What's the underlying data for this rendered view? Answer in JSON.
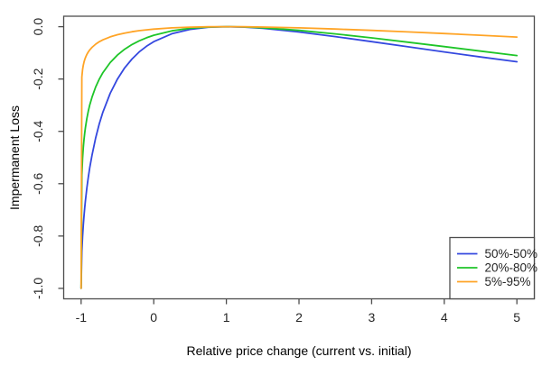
{
  "figure": {
    "background": "#ffffff"
  },
  "chart_data": {
    "type": "line",
    "title": "",
    "xlabel": "Relative price change (current vs. initial)",
    "ylabel": "Impermanent Loss",
    "xlim": [
      -1,
      5
    ],
    "ylim": [
      -1,
      0
    ],
    "x_ticks": [
      -1,
      0,
      1,
      2,
      3,
      4,
      5
    ],
    "x_tick_labels": [
      "-1",
      "0",
      "1",
      "2",
      "3",
      "4",
      "5"
    ],
    "y_ticks": [
      0,
      -0.2,
      -0.4,
      -0.6,
      -0.8,
      -1
    ],
    "y_tick_labels": [
      "0.0",
      "-0.2",
      "-0.4",
      "-0.6",
      "-0.8",
      "-1.0"
    ],
    "grid": false,
    "axis_color": "#4d4d4d",
    "text_color": "#262626",
    "legend": {
      "position": "bottom-right",
      "border": true,
      "background": "#ffffff"
    },
    "series": [
      {
        "name": "50%-50%",
        "color": "#3448DF",
        "points": [
          [
            -1,
            -1
          ],
          [
            -0.99,
            -0.8593
          ],
          [
            -0.98,
            -0.802
          ],
          [
            -0.97,
            -0.7587
          ],
          [
            -0.96,
            -0.7227
          ],
          [
            -0.95,
            -0.6915
          ],
          [
            -0.94,
            -0.6637
          ],
          [
            -0.92,
            -0.6154
          ],
          [
            -0.9,
            -0.5741
          ],
          [
            -0.88,
            -0.5378
          ],
          [
            -0.85,
            -0.4905
          ],
          [
            -0.8,
            -0.425
          ],
          [
            -0.75,
            -0.3715
          ],
          [
            -0.7,
            -0.3264
          ],
          [
            -0.6,
            -0.2546
          ],
          [
            -0.5,
            -0.2
          ],
          [
            -0.4,
            -0.1574
          ],
          [
            -0.3,
            -0.1235
          ],
          [
            -0.2,
            -0.0965
          ],
          [
            -0.1,
            -0.0747
          ],
          [
            0,
            -0.0572
          ],
          [
            0.25,
            -0.027
          ],
          [
            0.5,
            -0.0103
          ],
          [
            0.75,
            -0.0022
          ],
          [
            1,
            0
          ],
          [
            1.25,
            -0.0017
          ],
          [
            1.5,
            -0.0062
          ],
          [
            2,
            -0.0202
          ],
          [
            2.5,
            -0.0379
          ],
          [
            3,
            -0.0572
          ],
          [
            3.5,
            -0.0769
          ],
          [
            4,
            -0.0965
          ],
          [
            4.5,
            -0.1156
          ],
          [
            5,
            -0.134
          ]
        ]
      },
      {
        "name": "20%-80%",
        "color": "#1EC528",
        "points": [
          [
            -1,
            -1
          ],
          [
            -0.99,
            -0.5673
          ],
          [
            -0.98,
            -0.5036
          ],
          [
            -0.97,
            -0.4624
          ],
          [
            -0.96,
            -0.4312
          ],
          [
            -0.95,
            -0.406
          ],
          [
            -0.94,
            -0.3847
          ],
          [
            -0.92,
            -0.3499
          ],
          [
            -0.9,
            -0.3219
          ],
          [
            -0.88,
            -0.2984
          ],
          [
            -0.85,
            -0.2691
          ],
          [
            -0.8,
            -0.2305
          ],
          [
            -0.75,
            -0.2003
          ],
          [
            -0.7,
            -0.1756
          ],
          [
            -0.6,
            -0.1372
          ],
          [
            -0.5,
            -0.1084
          ],
          [
            -0.4,
            -0.086
          ],
          [
            -0.3,
            -0.0683
          ],
          [
            -0.2,
            -0.0539
          ],
          [
            -0.1,
            -0.0423
          ],
          [
            0,
            -0.0327
          ],
          [
            0.25,
            -0.0159
          ],
          [
            0.5,
            -0.0062
          ],
          [
            0.75,
            -0.0014
          ],
          [
            1,
            0
          ],
          [
            1.25,
            -0.0011
          ],
          [
            1.5,
            -0.0042
          ],
          [
            2,
            -0.0141
          ],
          [
            2.5,
            -0.0275
          ],
          [
            3,
            -0.0428
          ],
          [
            3.5,
            -0.0591
          ],
          [
            4,
            -0.0761
          ],
          [
            4.5,
            -0.0932
          ],
          [
            5,
            -0.1102
          ]
        ]
      },
      {
        "name": "5%-95%",
        "color": "#FFA426",
        "points": [
          [
            -1,
            -1
          ],
          [
            -0.99,
            -0.1926
          ],
          [
            -0.98,
            -0.1643
          ],
          [
            -0.97,
            -0.1474
          ],
          [
            -0.96,
            -0.1353
          ],
          [
            -0.95,
            -0.1258
          ],
          [
            -0.94,
            -0.1181
          ],
          [
            -0.92,
            -0.1057
          ],
          [
            -0.9,
            -0.0962
          ],
          [
            -0.88,
            -0.0884
          ],
          [
            -0.85,
            -0.0789
          ],
          [
            -0.8,
            -0.0668
          ],
          [
            -0.75,
            -0.0575
          ],
          [
            -0.7,
            -0.0501
          ],
          [
            -0.6,
            -0.0389
          ],
          [
            -0.5,
            -0.0306
          ],
          [
            -0.4,
            -0.0243
          ],
          [
            -0.3,
            -0.0193
          ],
          [
            -0.2,
            -0.0152
          ],
          [
            -0.1,
            -0.012
          ],
          [
            0,
            -0.0093
          ],
          [
            0.25,
            -0.0046
          ],
          [
            0.5,
            -0.0018
          ],
          [
            0.75,
            -0.0004
          ],
          [
            1,
            0
          ],
          [
            1.25,
            -0.0003
          ],
          [
            1.5,
            -0.0013
          ],
          [
            2,
            -0.0044
          ],
          [
            2.5,
            -0.0088
          ],
          [
            3,
            -0.014
          ],
          [
            3.5,
            -0.0199
          ],
          [
            4,
            -0.0262
          ],
          [
            4.5,
            -0.0328
          ],
          [
            5,
            -0.0396
          ]
        ]
      }
    ]
  }
}
